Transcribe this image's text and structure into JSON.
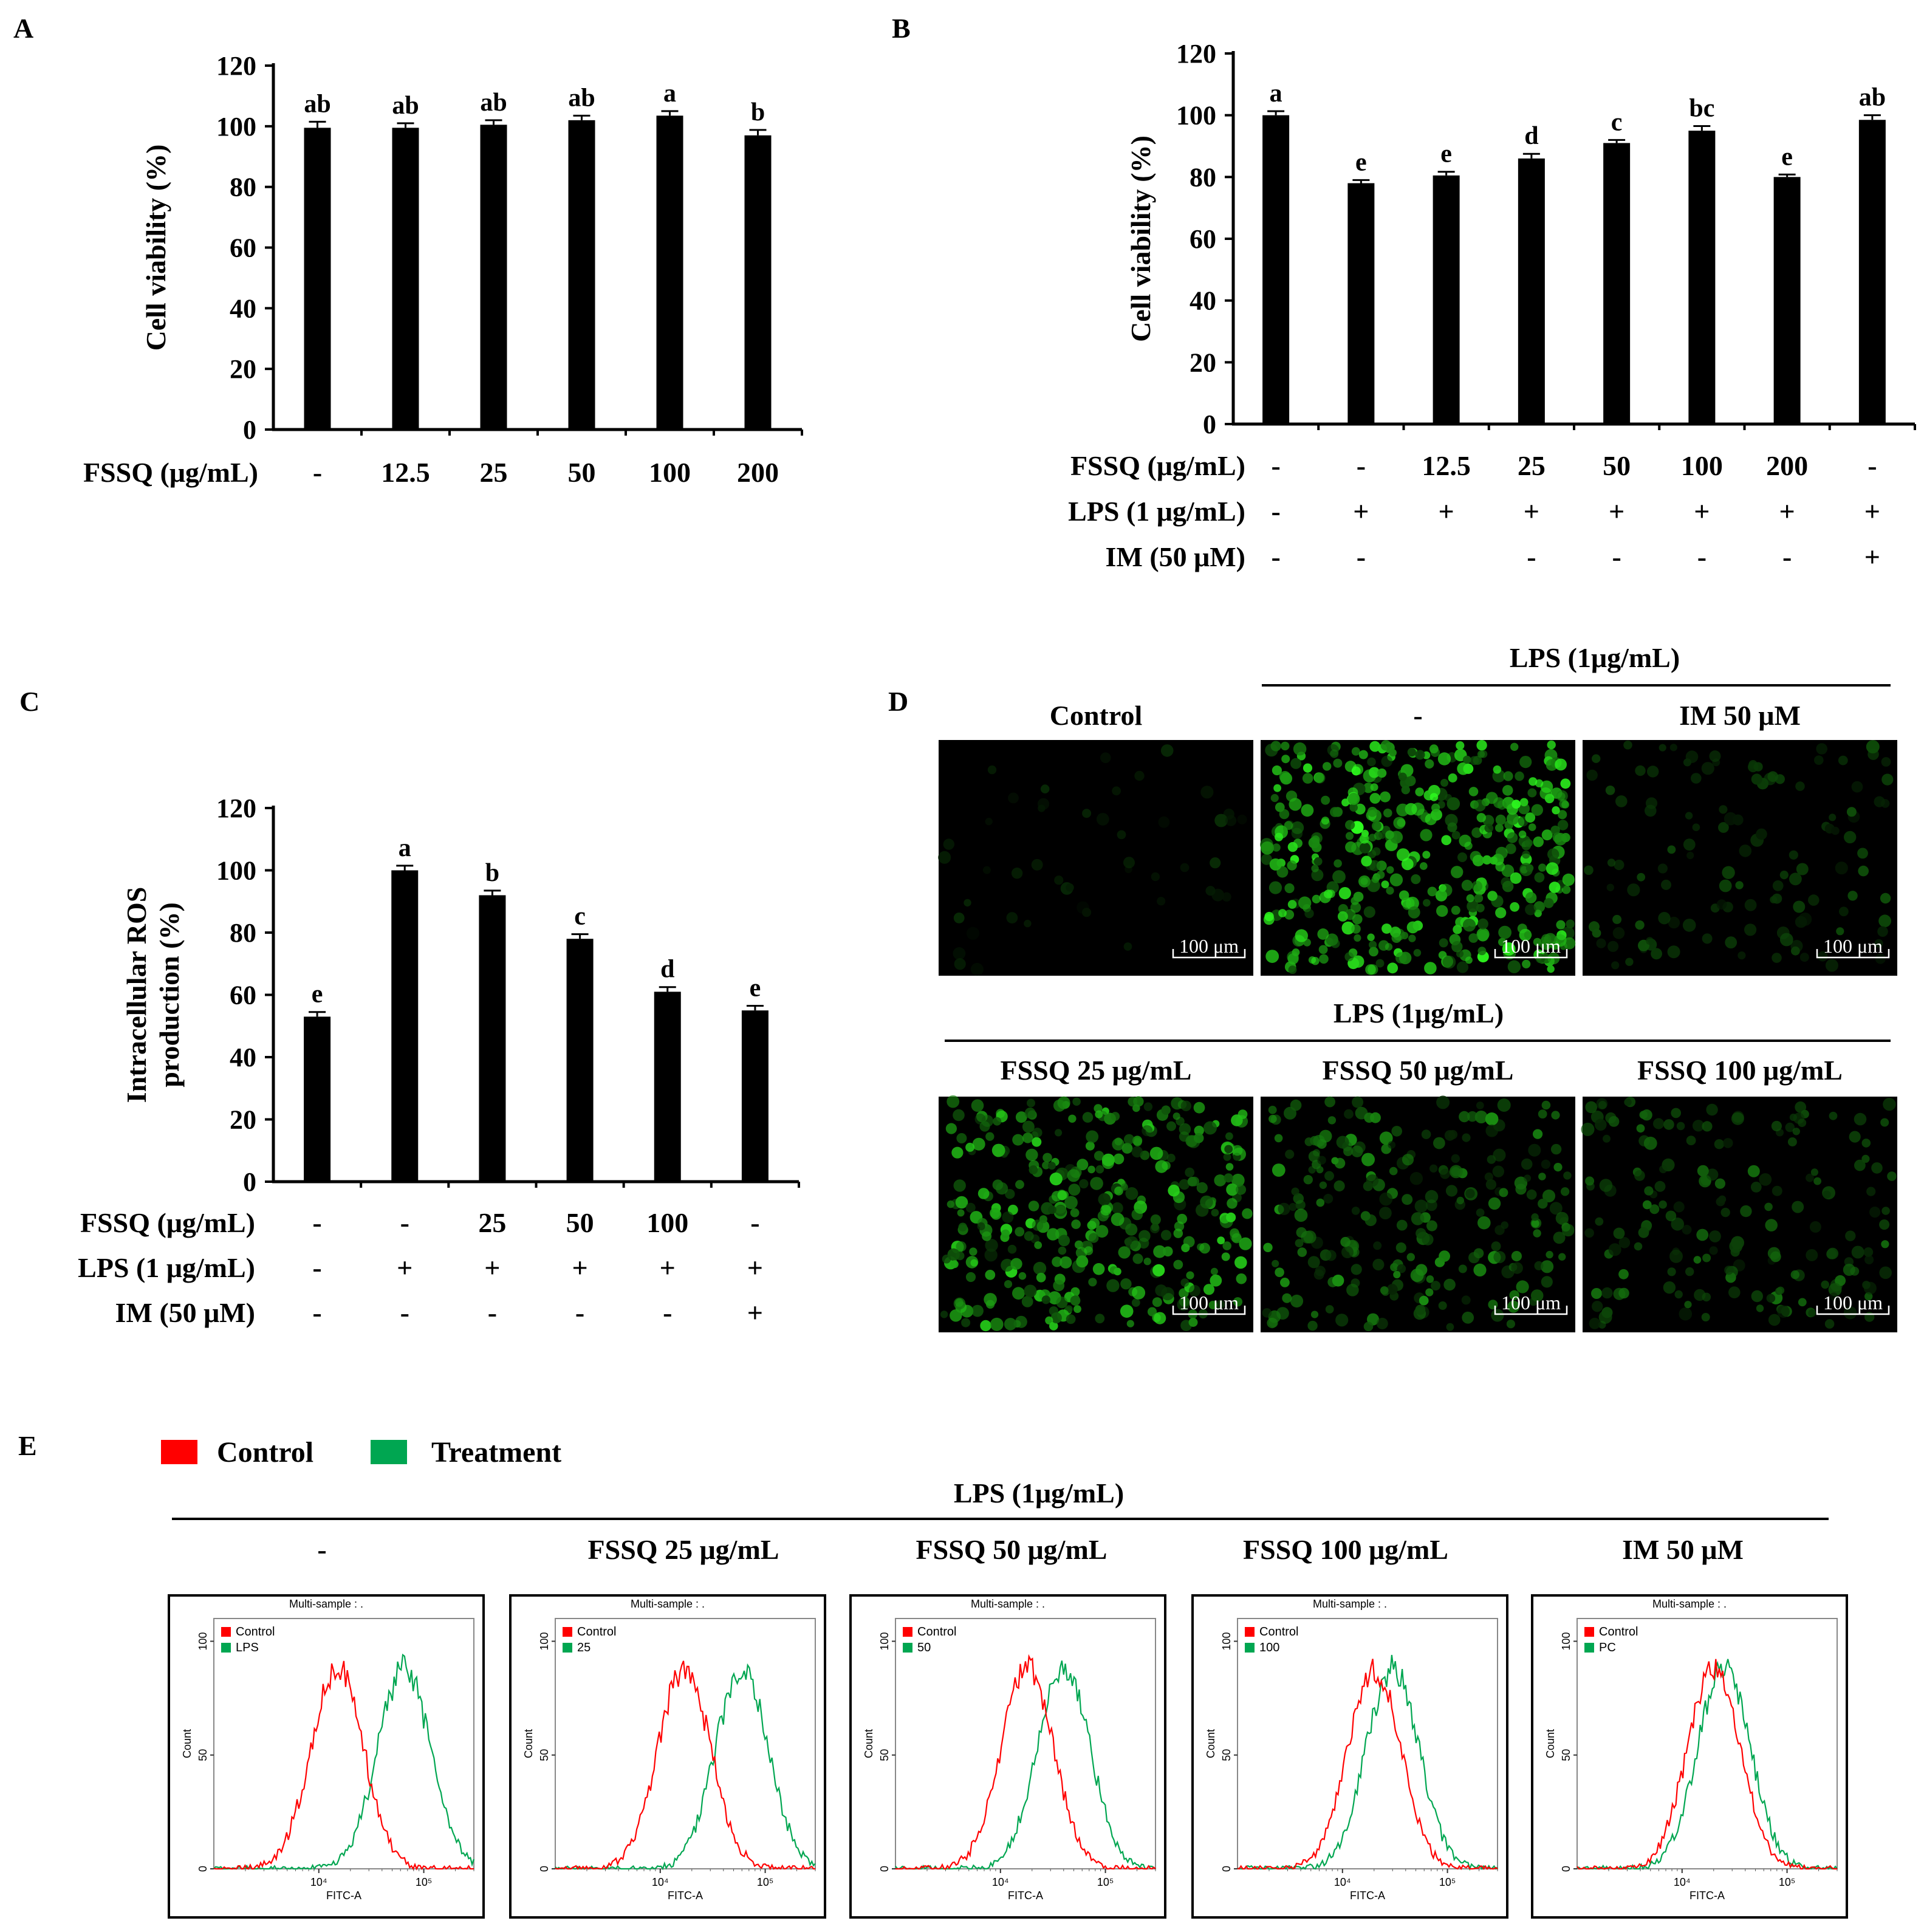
{
  "panels": {
    "A": {
      "label": "A",
      "chart_data": {
        "type": "bar",
        "ylabel": "Cell viability (%)",
        "ylim": [
          0,
          120
        ],
        "yticks": [
          "0",
          "20",
          "40",
          "60",
          "80",
          "100",
          "120"
        ],
        "rows": [
          {
            "label": "FSSQ (μg/mL)",
            "values": [
              "-",
              "12.5",
              "25",
              "50",
              "100",
              "200"
            ]
          }
        ],
        "values": [
          99.5,
          99.5,
          100.5,
          102,
          103.5,
          97
        ],
        "errors": [
          2,
          1.5,
          1.5,
          1.5,
          1.5,
          1.8
        ],
        "sig": [
          "ab",
          "ab",
          "ab",
          "ab",
          "a",
          "b"
        ]
      }
    },
    "B": {
      "label": "B",
      "chart_data": {
        "type": "bar",
        "ylabel": "Cell viability (%)",
        "ylim": [
          0,
          120
        ],
        "yticks": [
          "0",
          "20",
          "40",
          "60",
          "80",
          "100",
          "120"
        ],
        "rows": [
          {
            "label": "FSSQ  (μg/mL)",
            "values": [
              "-",
              "-",
              "12.5",
              "25",
              "50",
              "100",
              "200",
              "-"
            ]
          },
          {
            "label": "LPS (1 μg/mL)",
            "values": [
              "-",
              "+",
              "+",
              "+",
              "+",
              "+",
              "+",
              "+"
            ]
          },
          {
            "label": "IM (50 μM)",
            "values": [
              "-",
              "-",
              "",
              "-",
              "-",
              "-",
              "-",
              "+"
            ]
          }
        ],
        "values": [
          100,
          78,
          80.5,
          86,
          91,
          95,
          80,
          98.5
        ],
        "errors": [
          1.3,
          1,
          1.2,
          1.5,
          1,
          1.5,
          0.8,
          1.5
        ],
        "sig": [
          "a",
          "e",
          "e",
          "d",
          "c",
          "bc",
          "e",
          "ab"
        ]
      }
    },
    "C": {
      "label": "C",
      "chart_data": {
        "type": "bar",
        "ylabel": "Intracellular ROS production (%)",
        "ylabel_lines": [
          "Intracellular ROS",
          "production (%)"
        ],
        "ylim": [
          0,
          120
        ],
        "yticks": [
          "0",
          "20",
          "40",
          "60",
          "80",
          "100",
          "120"
        ],
        "rows": [
          {
            "label": "FSSQ  (μg/mL)",
            "values": [
              "-",
              "-",
              "25",
              "50",
              "100",
              "-"
            ]
          },
          {
            "label": "LPS (1 μg/mL)",
            "values": [
              "-",
              "+",
              "+",
              "+",
              "+",
              "+"
            ]
          },
          {
            "label": "IM (50 μM)",
            "values": [
              "-",
              "-",
              "-",
              "-",
              "-",
              "+"
            ]
          }
        ],
        "values": [
          53,
          100,
          92,
          78,
          61,
          55
        ],
        "errors": [
          1.5,
          1.5,
          1.5,
          1.5,
          1.5,
          1.5
        ],
        "sig": [
          "e",
          "a",
          "b",
          "c",
          "d",
          "e"
        ]
      }
    },
    "D": {
      "label": "D",
      "group_label_top": "LPS (1μg/mL)",
      "group_label_bottom": "LPS (1μg/mL)",
      "titles": [
        "Control",
        "-",
        "IM 50 μM",
        "FSSQ 25 μg/mL",
        "FSSQ 50 μg/mL",
        "FSSQ 100 μg/mL"
      ],
      "scale_bar": "100 μm",
      "densities": [
        0.04,
        1.0,
        0.22,
        0.8,
        0.5,
        0.35
      ]
    },
    "E": {
      "label": "E",
      "legend": [
        {
          "label": "Control",
          "color": "#ff0000"
        },
        {
          "label": "Treatment",
          "color": "#00a651"
        }
      ],
      "group_label": "LPS (1μg/mL)",
      "titles": [
        "-",
        "FSSQ 25 μg/mL",
        "FSSQ 50 μg/mL",
        "FSSQ 100 μg/mL",
        "IM 50 μM"
      ],
      "plot_header": "Multi-sample : .",
      "xlabel": "FITC-A",
      "ylabel": "Count",
      "yticks": [
        "0",
        "50",
        "100"
      ],
      "xticks": [
        "10⁴",
        "10⁵"
      ],
      "chart_data": {
        "type": "area",
        "xscale": "log",
        "xlim": [
          1000,
          300000
        ],
        "ylim": [
          0,
          110
        ],
        "plots": [
          {
            "legend": [
              "Control",
              "LPS"
            ],
            "control_peak": 15000,
            "treatment_peak": 65000
          },
          {
            "legend": [
              "Control",
              "25"
            ],
            "control_peak": 17000,
            "treatment_peak": 60000
          },
          {
            "legend": [
              "Control",
              "50"
            ],
            "control_peak": 18000,
            "treatment_peak": 40000
          },
          {
            "legend": [
              "Control",
              "100"
            ],
            "control_peak": 20000,
            "treatment_peak": 30000
          },
          {
            "legend": [
              "Control",
              "PC"
            ],
            "control_peak": 20000,
            "treatment_peak": 25000
          }
        ]
      }
    }
  }
}
